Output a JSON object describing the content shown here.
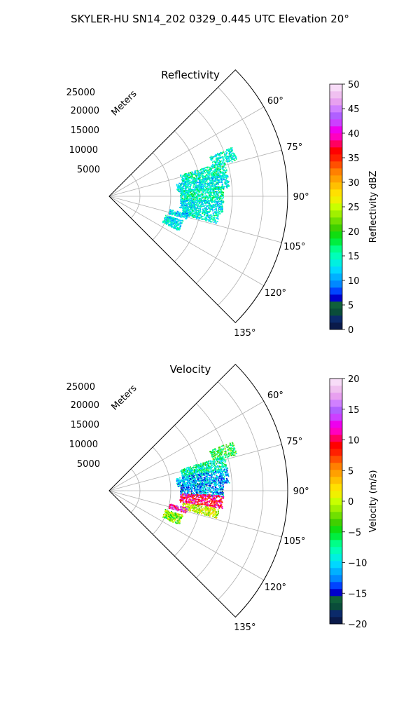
{
  "suptitle": "SKYLER-HU  SN14_202  0329_0.445 UTC Elevation 20°",
  "chart_data": [
    {
      "type": "polar-sector",
      "title": "Reflectivity",
      "radial_axis_label": "Meters",
      "radial_ticks": [
        5000,
        10000,
        15000,
        20000,
        25000
      ],
      "radial_tick_labels": [
        "5000",
        "10000",
        "15000",
        "20000",
        "25000"
      ],
      "rlim": [
        0,
        29000
      ],
      "theta_range_deg": [
        45,
        135
      ],
      "angle_ticks": [
        60,
        75,
        90,
        105,
        120,
        135
      ],
      "angle_tick_labels": [
        "60°",
        "75°",
        "90°",
        "105°",
        "120°",
        "135°"
      ],
      "grid": true,
      "colorbar": {
        "label": "Reflectivity dBZ",
        "range": [
          0,
          50
        ],
        "ticks": [
          0,
          5,
          10,
          15,
          20,
          25,
          30,
          35,
          40,
          45,
          50
        ],
        "tick_labels": [
          "0",
          "5",
          "10",
          "15",
          "20",
          "25",
          "30",
          "35",
          "40",
          "45",
          "50"
        ],
        "colors": [
          "#0a1a4a",
          "#0b2a6a",
          "#0a4d3a",
          "#10603a",
          "#0000cc",
          "#0044ff",
          "#0088ff",
          "#00b0ff",
          "#00d8ff",
          "#00f0e0",
          "#00ffb8",
          "#00ff88",
          "#00ee40",
          "#10dd10",
          "#40d000",
          "#70e000",
          "#a0f000",
          "#c8ff00",
          "#f0f000",
          "#ffe000",
          "#ffc000",
          "#ffa000",
          "#ff8000",
          "#ff5000",
          "#ff2000",
          "#ff0000",
          "#ff0060",
          "#ff00c0",
          "#ee00ee",
          "#cc40ff",
          "#b060ff",
          "#d080ff",
          "#e8a0f0",
          "#f0c0f0",
          "#f8dcf8"
        ]
      },
      "clusters": [
        {
          "r_km": [
            17.5,
            21.5
          ],
          "theta_deg": [
            68,
            74
          ],
          "value": 14
        },
        {
          "r_km": [
            12,
            19.5
          ],
          "theta_deg": [
            73,
            80
          ],
          "value": 15
        },
        {
          "r_km": [
            11,
            19.5
          ],
          "theta_deg": [
            79,
            86
          ],
          "value": 13
        },
        {
          "r_km": [
            11.5,
            18.5
          ],
          "theta_deg": [
            85,
            93
          ],
          "value": 15
        },
        {
          "r_km": [
            11.5,
            18.5
          ],
          "theta_deg": [
            92,
            99
          ],
          "value": 13
        },
        {
          "r_km": [
            12,
            18
          ],
          "theta_deg": [
            99,
            104
          ],
          "value": 14
        },
        {
          "r_km": [
            9.5,
            12.5
          ],
          "theta_deg": [
            108,
            116
          ],
          "value": 13
        },
        {
          "r_km": [
            10,
            13
          ],
          "theta_deg": [
            102,
            106
          ],
          "value": 12
        }
      ]
    },
    {
      "type": "polar-sector",
      "title": "Velocity",
      "radial_axis_label": "Meters",
      "radial_ticks": [
        5000,
        10000,
        15000,
        20000,
        25000
      ],
      "radial_tick_labels": [
        "5000",
        "10000",
        "15000",
        "20000",
        "25000"
      ],
      "rlim": [
        0,
        29000
      ],
      "theta_range_deg": [
        45,
        135
      ],
      "angle_ticks": [
        60,
        75,
        90,
        105,
        120,
        135
      ],
      "angle_tick_labels": [
        "60°",
        "75°",
        "90°",
        "105°",
        "120°",
        "135°"
      ],
      "grid": true,
      "colorbar": {
        "label": "Velocity (m/s)",
        "range": [
          -20,
          20
        ],
        "ticks": [
          -20,
          -15,
          -10,
          -5,
          0,
          5,
          10,
          15,
          20
        ],
        "tick_labels": [
          "−20",
          "−15",
          "−10",
          "−5",
          "0",
          "5",
          "10",
          "15",
          "20"
        ],
        "colors": [
          "#0a1a4a",
          "#0b2a6a",
          "#0a4d3a",
          "#10603a",
          "#0000cc",
          "#0044ff",
          "#0088ff",
          "#00b0ff",
          "#00d8ff",
          "#00f0e0",
          "#00ffb8",
          "#00ff88",
          "#00ee40",
          "#10dd10",
          "#40d000",
          "#70e000",
          "#a0f000",
          "#c8ff00",
          "#f0f000",
          "#ffe000",
          "#ffc000",
          "#ffa000",
          "#ff8000",
          "#ff5000",
          "#ff2000",
          "#ff0000",
          "#ff0060",
          "#ff00c0",
          "#ee00ee",
          "#cc40ff",
          "#b060ff",
          "#d080ff",
          "#e8a0f0",
          "#f0c0f0",
          "#f8dcf8"
        ]
      },
      "clusters": [
        {
          "r_km": [
            17.5,
            21.5
          ],
          "theta_deg": [
            68,
            74
          ],
          "value": -5
        },
        {
          "r_km": [
            12,
            19.5
          ],
          "theta_deg": [
            73,
            80
          ],
          "value": -8
        },
        {
          "r_km": [
            11,
            19.5
          ],
          "theta_deg": [
            79,
            86
          ],
          "value": -11
        },
        {
          "r_km": [
            11.5,
            18.5
          ],
          "theta_deg": [
            85,
            93
          ],
          "value": -12
        },
        {
          "r_km": [
            11.5,
            18.5
          ],
          "theta_deg": [
            92,
            99
          ],
          "value": 10
        },
        {
          "r_km": [
            12,
            18
          ],
          "theta_deg": [
            99,
            104
          ],
          "value": 0
        },
        {
          "r_km": [
            9.5,
            12.5
          ],
          "theta_deg": [
            108,
            116
          ],
          "value": -2
        },
        {
          "r_km": [
            10,
            13
          ],
          "theta_deg": [
            102,
            106
          ],
          "value": 12
        }
      ]
    }
  ]
}
